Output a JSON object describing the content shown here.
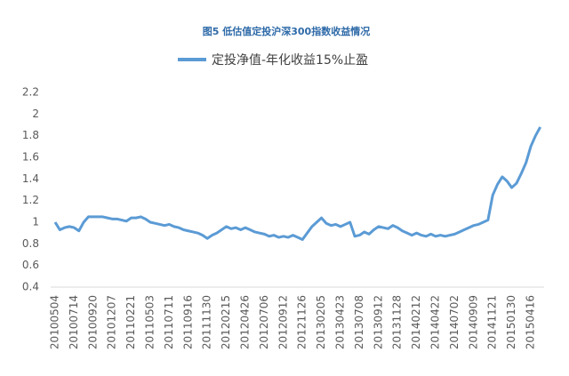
{
  "chart_data": {
    "type": "line",
    "title": "图5  低估值定投沪深300指数收益情况",
    "categories": [
      "20100504",
      null,
      null,
      null,
      "20100714",
      null,
      null,
      null,
      "20100920",
      null,
      null,
      null,
      "20101207",
      null,
      null,
      null,
      "20110221",
      null,
      null,
      null,
      "20110503",
      null,
      null,
      null,
      "20110711",
      null,
      null,
      null,
      "20110916",
      null,
      null,
      null,
      "20111130",
      null,
      null,
      null,
      "20120215",
      null,
      null,
      null,
      "20120426",
      null,
      null,
      null,
      "20120706",
      null,
      null,
      null,
      "20120912",
      null,
      null,
      null,
      "20121126",
      null,
      null,
      null,
      "20130205",
      null,
      null,
      null,
      "20130423",
      null,
      null,
      null,
      "20130708",
      null,
      null,
      null,
      "20130912",
      null,
      null,
      null,
      "20131128",
      null,
      null,
      null,
      "20140212",
      null,
      null,
      null,
      "20140422",
      null,
      null,
      null,
      "20140702",
      null,
      null,
      null,
      "20140909",
      null,
      null,
      null,
      "20141121",
      null,
      null,
      null,
      "20150130",
      null,
      null,
      null,
      "20150416",
      null,
      null
    ],
    "series": [
      {
        "name": "定投净值-年化收益15%止盈",
        "color": "#5b9bd5",
        "values": [
          1.0,
          0.93,
          0.95,
          0.96,
          0.95,
          0.92,
          1.0,
          1.05,
          1.05,
          1.05,
          1.05,
          1.04,
          1.03,
          1.03,
          1.02,
          1.01,
          1.04,
          1.04,
          1.05,
          1.03,
          1.0,
          0.99,
          0.98,
          0.97,
          0.98,
          0.96,
          0.95,
          0.93,
          0.92,
          0.91,
          0.9,
          0.88,
          0.85,
          0.88,
          0.9,
          0.93,
          0.96,
          0.94,
          0.95,
          0.93,
          0.95,
          0.93,
          0.91,
          0.9,
          0.89,
          0.87,
          0.88,
          0.86,
          0.87,
          0.86,
          0.88,
          0.86,
          0.84,
          0.9,
          0.96,
          1.0,
          1.04,
          0.99,
          0.97,
          0.98,
          0.96,
          0.98,
          1.0,
          0.87,
          0.88,
          0.91,
          0.89,
          0.93,
          0.96,
          0.95,
          0.94,
          0.97,
          0.95,
          0.92,
          0.9,
          0.88,
          0.9,
          0.88,
          0.87,
          0.89,
          0.87,
          0.88,
          0.87,
          0.88,
          0.89,
          0.91,
          0.93,
          0.95,
          0.97,
          0.98,
          1.0,
          1.02,
          1.25,
          1.35,
          1.42,
          1.38,
          1.32,
          1.36,
          1.45,
          1.55,
          1.7,
          1.8,
          1.88
        ]
      }
    ],
    "ylim": [
      0.4,
      2.2
    ],
    "yticks": [
      0.4,
      0.6,
      0.8,
      1,
      1.2,
      1.4,
      1.6,
      1.8,
      2,
      2.2
    ],
    "grid": false
  }
}
